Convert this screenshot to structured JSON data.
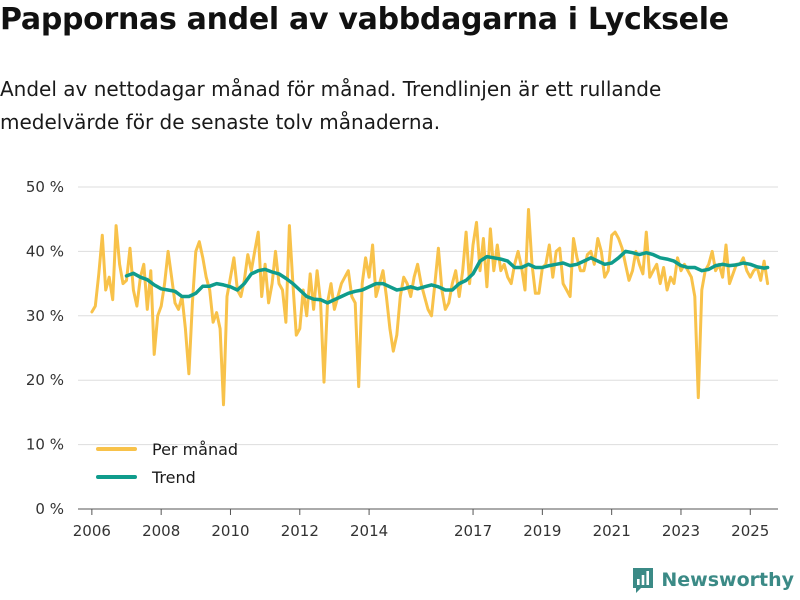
{
  "header": {
    "title": "Pappornas andel av vabbdagarna i Lycksele",
    "subtitle": "Andel av nettodagar månad för månad. Trendlinjen är ett rullande medelvärde för de senaste tolv månaderna."
  },
  "brand": {
    "name": "Newsworthy",
    "icon": "newsworthy-logo-icon",
    "color": "#3b8a86"
  },
  "chart_data": {
    "type": "line",
    "title": "Pappornas andel av vabbdagarna i Lycksele",
    "xlabel": "",
    "ylabel": "",
    "xlim": [
      2005.6,
      2025.8
    ],
    "ylim": [
      0,
      50
    ],
    "grid": true,
    "legend_position": "bottom-left",
    "y_ticks": [
      {
        "value": 0,
        "label": "0 %"
      },
      {
        "value": 10,
        "label": "10 %"
      },
      {
        "value": 20,
        "label": "20 %"
      },
      {
        "value": 30,
        "label": "30 %"
      },
      {
        "value": 40,
        "label": "40 %"
      },
      {
        "value": 50,
        "label": "50 %"
      }
    ],
    "x_ticks": [
      {
        "value": 2006,
        "label": "2006"
      },
      {
        "value": 2008,
        "label": "2008"
      },
      {
        "value": 2010,
        "label": "2010"
      },
      {
        "value": 2012,
        "label": "2012"
      },
      {
        "value": 2014,
        "label": "2014"
      },
      {
        "value": 2017,
        "label": "2017"
      },
      {
        "value": 2019,
        "label": "2019"
      },
      {
        "value": 2021,
        "label": "2021"
      },
      {
        "value": 2023,
        "label": "2023"
      },
      {
        "value": 2025,
        "label": "2025"
      }
    ],
    "series": [
      {
        "name": "Per månad",
        "color": "#f8c24a",
        "points": [
          [
            2006.0,
            30.6
          ],
          [
            2006.1,
            31.5
          ],
          [
            2006.2,
            36.5
          ],
          [
            2006.3,
            42.5
          ],
          [
            2006.4,
            34.0
          ],
          [
            2006.5,
            36.0
          ],
          [
            2006.6,
            32.5
          ],
          [
            2006.7,
            44.0
          ],
          [
            2006.8,
            38.0
          ],
          [
            2006.9,
            35.0
          ],
          [
            2007.0,
            35.5
          ],
          [
            2007.1,
            40.5
          ],
          [
            2007.2,
            34.0
          ],
          [
            2007.3,
            31.5
          ],
          [
            2007.4,
            36.0
          ],
          [
            2007.5,
            38.0
          ],
          [
            2007.6,
            31.0
          ],
          [
            2007.7,
            37.0
          ],
          [
            2007.8,
            24.0
          ],
          [
            2007.9,
            30.0
          ],
          [
            2008.0,
            31.5
          ],
          [
            2008.1,
            35.0
          ],
          [
            2008.2,
            40.0
          ],
          [
            2008.3,
            36.0
          ],
          [
            2008.4,
            32.0
          ],
          [
            2008.5,
            31.0
          ],
          [
            2008.6,
            33.0
          ],
          [
            2008.7,
            28.0
          ],
          [
            2008.8,
            21.0
          ],
          [
            2008.9,
            32.0
          ],
          [
            2009.0,
            40.0
          ],
          [
            2009.1,
            41.5
          ],
          [
            2009.2,
            39.0
          ],
          [
            2009.3,
            36.0
          ],
          [
            2009.4,
            34.0
          ],
          [
            2009.5,
            29.0
          ],
          [
            2009.6,
            30.5
          ],
          [
            2009.7,
            28.0
          ],
          [
            2009.8,
            16.2
          ],
          [
            2009.9,
            33.0
          ],
          [
            2010.0,
            36.0
          ],
          [
            2010.1,
            39.0
          ],
          [
            2010.2,
            34.0
          ],
          [
            2010.3,
            33.0
          ],
          [
            2010.4,
            35.5
          ],
          [
            2010.5,
            39.5
          ],
          [
            2010.6,
            37.0
          ],
          [
            2010.7,
            40.0
          ],
          [
            2010.8,
            43.0
          ],
          [
            2010.9,
            33.0
          ],
          [
            2011.0,
            38.0
          ],
          [
            2011.1,
            32.0
          ],
          [
            2011.2,
            35.0
          ],
          [
            2011.3,
            40.0
          ],
          [
            2011.4,
            35.0
          ],
          [
            2011.5,
            34.0
          ],
          [
            2011.6,
            29.0
          ],
          [
            2011.7,
            44.0
          ],
          [
            2011.8,
            35.0
          ],
          [
            2011.9,
            27.0
          ],
          [
            2012.0,
            28.0
          ],
          [
            2012.1,
            34.0
          ],
          [
            2012.2,
            30.0
          ],
          [
            2012.3,
            36.5
          ],
          [
            2012.4,
            31.0
          ],
          [
            2012.5,
            37.0
          ],
          [
            2012.6,
            32.0
          ],
          [
            2012.7,
            19.7
          ],
          [
            2012.8,
            32.0
          ],
          [
            2012.9,
            35.0
          ],
          [
            2013.0,
            31.0
          ],
          [
            2013.1,
            33.0
          ],
          [
            2013.2,
            35.0
          ],
          [
            2013.3,
            36.0
          ],
          [
            2013.4,
            37.0
          ],
          [
            2013.5,
            33.0
          ],
          [
            2013.6,
            32.0
          ],
          [
            2013.7,
            19.0
          ],
          [
            2013.8,
            35.0
          ],
          [
            2013.9,
            39.0
          ],
          [
            2014.0,
            36.0
          ],
          [
            2014.1,
            41.0
          ],
          [
            2014.2,
            33.0
          ],
          [
            2014.3,
            35.0
          ],
          [
            2014.4,
            37.0
          ],
          [
            2014.5,
            33.0
          ],
          [
            2014.6,
            28.0
          ],
          [
            2014.7,
            24.5
          ],
          [
            2014.8,
            27.0
          ],
          [
            2014.9,
            33.0
          ],
          [
            2015.0,
            36.0
          ],
          [
            2015.1,
            35.0
          ],
          [
            2015.2,
            33.0
          ],
          [
            2015.3,
            36.0
          ],
          [
            2015.4,
            38.0
          ],
          [
            2015.5,
            35.0
          ],
          [
            2015.6,
            33.0
          ],
          [
            2015.7,
            31.0
          ],
          [
            2015.8,
            30.0
          ],
          [
            2015.9,
            35.0
          ],
          [
            2016.0,
            40.5
          ],
          [
            2016.1,
            34.0
          ],
          [
            2016.2,
            31.0
          ],
          [
            2016.3,
            32.0
          ],
          [
            2016.4,
            35.0
          ],
          [
            2016.5,
            37.0
          ],
          [
            2016.6,
            33.0
          ],
          [
            2016.7,
            37.0
          ],
          [
            2016.8,
            43.0
          ],
          [
            2016.9,
            35.0
          ],
          [
            2017.0,
            41.0
          ],
          [
            2017.1,
            44.5
          ],
          [
            2017.2,
            37.0
          ],
          [
            2017.3,
            42.0
          ],
          [
            2017.4,
            34.5
          ],
          [
            2017.5,
            43.5
          ],
          [
            2017.6,
            37.0
          ],
          [
            2017.7,
            41.0
          ],
          [
            2017.8,
            37.0
          ],
          [
            2017.9,
            38.0
          ],
          [
            2018.0,
            36.0
          ],
          [
            2018.1,
            35.0
          ],
          [
            2018.2,
            38.0
          ],
          [
            2018.3,
            40.0
          ],
          [
            2018.4,
            37.5
          ],
          [
            2018.5,
            34.0
          ],
          [
            2018.6,
            46.5
          ],
          [
            2018.7,
            38.0
          ],
          [
            2018.8,
            33.5
          ],
          [
            2018.9,
            33.5
          ],
          [
            2019.0,
            37.5
          ],
          [
            2019.1,
            38.0
          ],
          [
            2019.2,
            41.0
          ],
          [
            2019.3,
            36.0
          ],
          [
            2019.4,
            40.0
          ],
          [
            2019.5,
            40.5
          ],
          [
            2019.6,
            35.0
          ],
          [
            2019.7,
            34.0
          ],
          [
            2019.8,
            33.0
          ],
          [
            2019.9,
            42.0
          ],
          [
            2020.0,
            39.0
          ],
          [
            2020.1,
            37.0
          ],
          [
            2020.2,
            37.0
          ],
          [
            2020.3,
            39.5
          ],
          [
            2020.4,
            40.0
          ],
          [
            2020.5,
            38.0
          ],
          [
            2020.6,
            42.0
          ],
          [
            2020.7,
            40.0
          ],
          [
            2020.8,
            36.0
          ],
          [
            2020.9,
            37.0
          ],
          [
            2021.0,
            42.5
          ],
          [
            2021.1,
            43.0
          ],
          [
            2021.2,
            42.0
          ],
          [
            2021.3,
            40.5
          ],
          [
            2021.4,
            38.0
          ],
          [
            2021.5,
            35.5
          ],
          [
            2021.6,
            37.0
          ],
          [
            2021.7,
            40.0
          ],
          [
            2021.8,
            38.0
          ],
          [
            2021.9,
            36.5
          ],
          [
            2022.0,
            43.0
          ],
          [
            2022.1,
            36.0
          ],
          [
            2022.2,
            37.0
          ],
          [
            2022.3,
            38.0
          ],
          [
            2022.4,
            35.0
          ],
          [
            2022.5,
            37.5
          ],
          [
            2022.6,
            34.0
          ],
          [
            2022.7,
            36.0
          ],
          [
            2022.8,
            35.0
          ],
          [
            2022.9,
            39.0
          ],
          [
            2023.0,
            37.0
          ],
          [
            2023.1,
            38.0
          ],
          [
            2023.2,
            37.0
          ],
          [
            2023.3,
            36.0
          ],
          [
            2023.4,
            33.0
          ],
          [
            2023.5,
            17.3
          ],
          [
            2023.6,
            34.0
          ],
          [
            2023.7,
            37.0
          ],
          [
            2023.8,
            38.0
          ],
          [
            2023.9,
            40.0
          ],
          [
            2024.0,
            37.0
          ],
          [
            2024.1,
            38.0
          ],
          [
            2024.2,
            36.0
          ],
          [
            2024.3,
            41.0
          ],
          [
            2024.4,
            35.0
          ],
          [
            2024.5,
            36.5
          ],
          [
            2024.6,
            38.0
          ],
          [
            2024.7,
            38.0
          ],
          [
            2024.8,
            39.0
          ],
          [
            2024.9,
            37.0
          ],
          [
            2025.0,
            36.0
          ],
          [
            2025.1,
            37.0
          ],
          [
            2025.2,
            37.5
          ],
          [
            2025.3,
            35.5
          ],
          [
            2025.4,
            38.5
          ],
          [
            2025.5,
            35.0
          ]
        ]
      },
      {
        "name": "Trend",
        "color": "#0f9c8c",
        "points": [
          [
            2007.0,
            36.2
          ],
          [
            2007.2,
            36.6
          ],
          [
            2007.4,
            36.0
          ],
          [
            2007.6,
            35.6
          ],
          [
            2007.8,
            34.8
          ],
          [
            2008.0,
            34.2
          ],
          [
            2008.2,
            34.0
          ],
          [
            2008.4,
            33.8
          ],
          [
            2008.6,
            33.0
          ],
          [
            2008.8,
            33.0
          ],
          [
            2009.0,
            33.5
          ],
          [
            2009.2,
            34.6
          ],
          [
            2009.4,
            34.6
          ],
          [
            2009.6,
            35.0
          ],
          [
            2009.8,
            34.8
          ],
          [
            2010.0,
            34.5
          ],
          [
            2010.2,
            34.0
          ],
          [
            2010.4,
            35.0
          ],
          [
            2010.6,
            36.5
          ],
          [
            2010.8,
            37.0
          ],
          [
            2011.0,
            37.2
          ],
          [
            2011.2,
            36.8
          ],
          [
            2011.4,
            36.5
          ],
          [
            2011.6,
            35.8
          ],
          [
            2011.8,
            35.0
          ],
          [
            2012.0,
            34.0
          ],
          [
            2012.2,
            33.0
          ],
          [
            2012.4,
            32.6
          ],
          [
            2012.6,
            32.5
          ],
          [
            2012.8,
            32.0
          ],
          [
            2013.0,
            32.5
          ],
          [
            2013.2,
            33.0
          ],
          [
            2013.4,
            33.5
          ],
          [
            2013.6,
            33.8
          ],
          [
            2013.8,
            34.0
          ],
          [
            2014.0,
            34.5
          ],
          [
            2014.2,
            35.0
          ],
          [
            2014.4,
            35.0
          ],
          [
            2014.6,
            34.5
          ],
          [
            2014.8,
            34.0
          ],
          [
            2015.0,
            34.2
          ],
          [
            2015.2,
            34.5
          ],
          [
            2015.4,
            34.2
          ],
          [
            2015.6,
            34.5
          ],
          [
            2015.8,
            34.8
          ],
          [
            2016.0,
            34.5
          ],
          [
            2016.2,
            34.0
          ],
          [
            2016.4,
            34.0
          ],
          [
            2016.6,
            35.0
          ],
          [
            2016.8,
            35.5
          ],
          [
            2017.0,
            36.5
          ],
          [
            2017.2,
            38.5
          ],
          [
            2017.4,
            39.2
          ],
          [
            2017.6,
            39.0
          ],
          [
            2017.8,
            38.8
          ],
          [
            2018.0,
            38.5
          ],
          [
            2018.2,
            37.5
          ],
          [
            2018.4,
            37.5
          ],
          [
            2018.6,
            38.0
          ],
          [
            2018.8,
            37.5
          ],
          [
            2019.0,
            37.5
          ],
          [
            2019.2,
            37.8
          ],
          [
            2019.4,
            38.0
          ],
          [
            2019.6,
            38.2
          ],
          [
            2019.8,
            37.8
          ],
          [
            2020.0,
            38.0
          ],
          [
            2020.2,
            38.5
          ],
          [
            2020.4,
            39.0
          ],
          [
            2020.6,
            38.5
          ],
          [
            2020.8,
            38.0
          ],
          [
            2021.0,
            38.2
          ],
          [
            2021.2,
            39.0
          ],
          [
            2021.4,
            40.0
          ],
          [
            2021.6,
            39.8
          ],
          [
            2021.8,
            39.5
          ],
          [
            2022.0,
            39.8
          ],
          [
            2022.2,
            39.5
          ],
          [
            2022.4,
            39.0
          ],
          [
            2022.6,
            38.8
          ],
          [
            2022.8,
            38.5
          ],
          [
            2023.0,
            37.8
          ],
          [
            2023.2,
            37.5
          ],
          [
            2023.4,
            37.5
          ],
          [
            2023.6,
            37.0
          ],
          [
            2023.8,
            37.2
          ],
          [
            2024.0,
            37.8
          ],
          [
            2024.2,
            38.0
          ],
          [
            2024.4,
            37.8
          ],
          [
            2024.6,
            37.9
          ],
          [
            2024.8,
            38.2
          ],
          [
            2025.0,
            38.0
          ],
          [
            2025.2,
            37.6
          ],
          [
            2025.4,
            37.4
          ],
          [
            2025.5,
            37.5
          ]
        ]
      }
    ]
  }
}
